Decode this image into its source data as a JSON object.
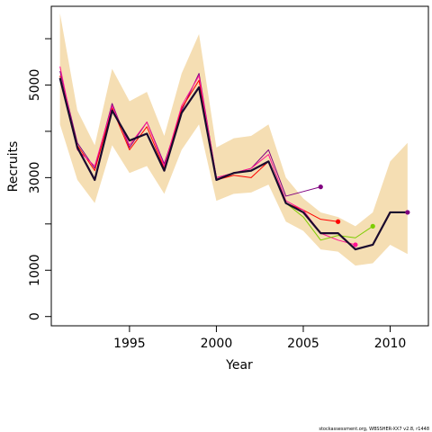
{
  "chart_data": {
    "type": "line",
    "xlabel": "Year",
    "ylabel": "Recruits",
    "xlim": [
      1990.5,
      2012.2
    ],
    "ylim": [
      -200,
      6700
    ],
    "x_ticks": [
      1995,
      2000,
      2005,
      2010
    ],
    "y_ticks": [
      0,
      1000,
      2000,
      3000,
      4000,
      5000,
      6000
    ],
    "y_tick_labels": [
      "0",
      "1000",
      "",
      "3000",
      "",
      "5000",
      ""
    ],
    "grid": false,
    "colors": {
      "band": "#f5deb3",
      "main": "#1a0a2e",
      "retro_1": "#800080",
      "retro_2": "#ff0000",
      "retro_3": "#ff1493",
      "retro_4": "#7ccd00"
    },
    "band": {
      "years": [
        1991,
        1992,
        1993,
        1994,
        1995,
        1996,
        1997,
        1998,
        1999,
        2000,
        2001,
        2002,
        2003,
        2004,
        2005,
        2006,
        2007,
        2008,
        2009,
        2010,
        2011
      ],
      "lower": [
        4150,
        2950,
        2450,
        3700,
        3100,
        3250,
        2650,
        3600,
        4150,
        2500,
        2650,
        2680,
        2850,
        2050,
        1850,
        1450,
        1400,
        1100,
        1150,
        1550,
        1350
      ],
      "upper": [
        6550,
        4450,
        3700,
        5350,
        4650,
        4850,
        3900,
        5250,
        6100,
        3650,
        3850,
        3900,
        4150,
        3000,
        2550,
        2250,
        2150,
        1950,
        2250,
        3350,
        3750
      ]
    },
    "series": [
      {
        "values_x": [
          1991,
          1992,
          1993,
          1994,
          1995,
          1996,
          1997,
          1998,
          1999,
          2000,
          2001,
          2002,
          2003,
          2004,
          2005,
          2006,
          2007,
          2008,
          2009,
          2010,
          2011
        ],
        "values_y": [
          5150,
          3650,
          2950,
          4450,
          3800,
          3950,
          3150,
          4400,
          4950,
          2950,
          3100,
          3150,
          3350,
          2450,
          2250,
          1800,
          1800,
          1450,
          1550,
          2250,
          2250
        ],
        "color_key": "main",
        "width": 2.2
      },
      {
        "values_x": [
          1991,
          1992,
          1993,
          1994,
          1995,
          1996,
          1997,
          1998,
          1999,
          2000,
          2001,
          2002,
          2003,
          2004,
          2005,
          2006
        ],
        "values_y": [
          5300,
          3750,
          3200,
          4600,
          3650,
          4200,
          3300,
          4450,
          5250,
          3000,
          3100,
          3200,
          3600,
          2600,
          2700,
          2800
        ],
        "color_key": "retro_1",
        "width": 1
      },
      {
        "values_x": [
          1991,
          1992,
          1993,
          1994,
          1995,
          1996,
          1997,
          1998,
          1999,
          2000,
          2001,
          2002,
          2003,
          2004,
          2005,
          2006,
          2007
        ],
        "values_y": [
          5200,
          3700,
          3150,
          4500,
          3600,
          4100,
          3200,
          4500,
          5100,
          2950,
          3050,
          3000,
          3350,
          2450,
          2300,
          2100,
          2050
        ],
        "color_key": "retro_2",
        "width": 1
      },
      {
        "values_x": [
          1991,
          1992,
          1993,
          1994,
          1995,
          1996,
          1997,
          1998,
          1999,
          2000,
          2001,
          2002,
          2003,
          2004,
          2005,
          2006,
          2007,
          2008
        ],
        "values_y": [
          5400,
          3600,
          3250,
          4550,
          3700,
          4200,
          3250,
          4550,
          5200,
          3000,
          3100,
          3200,
          3500,
          2500,
          2300,
          1800,
          1650,
          1550
        ],
        "color_key": "retro_3",
        "width": 1
      },
      {
        "values_x": [
          1991,
          1992,
          1993,
          1994,
          1995,
          1996,
          1997,
          1998,
          1999,
          2000,
          2001,
          2002,
          2003,
          2004,
          2005,
          2006,
          2007,
          2008,
          2009
        ],
        "values_y": [
          5150,
          3650,
          2950,
          4450,
          3800,
          3950,
          3150,
          4400,
          4950,
          2950,
          3100,
          3150,
          3350,
          2450,
          2150,
          1650,
          1750,
          1700,
          1950
        ],
        "color_key": "retro_4",
        "width": 1
      }
    ],
    "endpoints": [
      {
        "x": 2006,
        "y": 2800,
        "color_key": "retro_1"
      },
      {
        "x": 2007,
        "y": 2050,
        "color_key": "retro_2"
      },
      {
        "x": 2008,
        "y": 1550,
        "color_key": "retro_3"
      },
      {
        "x": 2009,
        "y": 1950,
        "color_key": "retro_4"
      },
      {
        "x": 2011,
        "y": 2250,
        "color_key": "retro_1"
      }
    ]
  },
  "footer": "stockassessment.org, WBSSHER-XX7  v2.8, r1448"
}
